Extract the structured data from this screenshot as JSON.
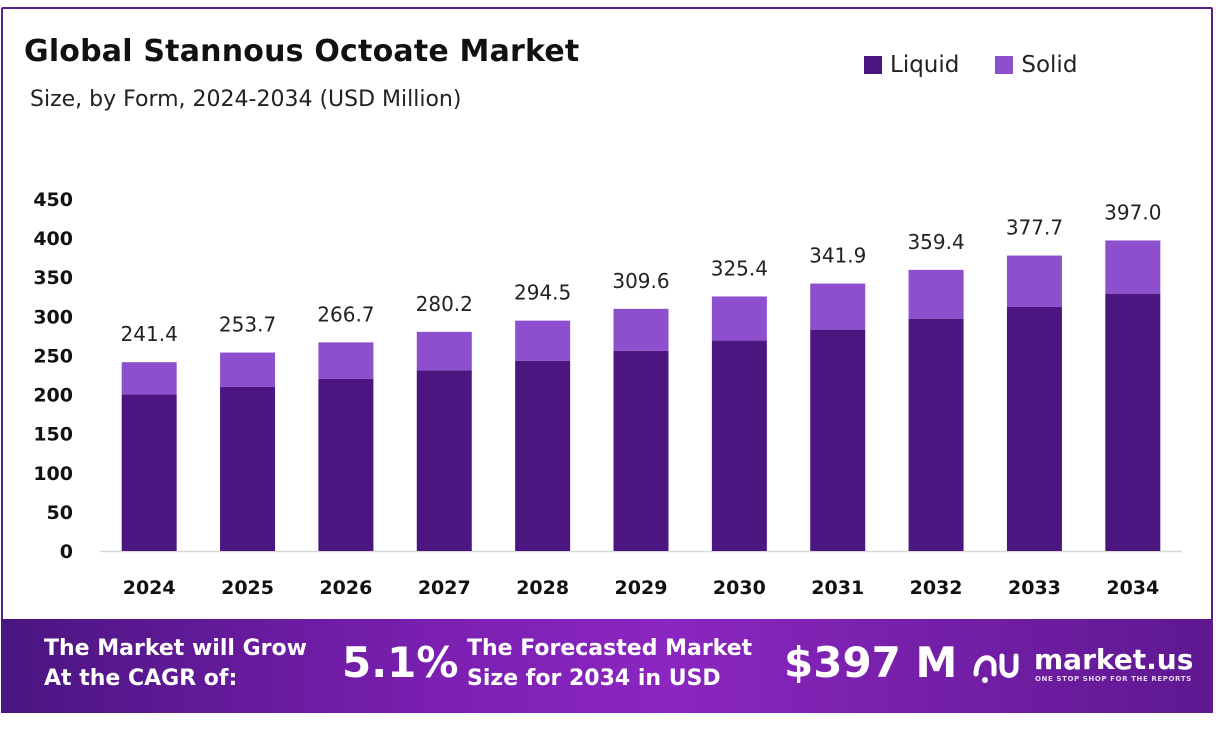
{
  "header": {
    "title": "Global Stannous Octoate Market",
    "subtitle": "Size, by Form, 2024-2034 (USD Million)"
  },
  "legend": [
    {
      "label": "Liquid",
      "color": "#4b1680"
    },
    {
      "label": "Solid",
      "color": "#8e4fce"
    }
  ],
  "chart_data": {
    "type": "bar",
    "stacked": true,
    "categories": [
      "2024",
      "2025",
      "2026",
      "2027",
      "2028",
      "2029",
      "2030",
      "2031",
      "2032",
      "2033",
      "2034"
    ],
    "series": [
      {
        "name": "Liquid",
        "color": "#4b1680",
        "values": [
          200,
          210,
          220,
          231,
          243,
          256,
          269,
          283,
          297,
          312,
          329
        ]
      },
      {
        "name": "Solid",
        "color": "#8e4fce",
        "values": [
          41.4,
          43.7,
          46.7,
          49.2,
          51.5,
          53.6,
          56.4,
          58.9,
          62.4,
          65.7,
          68.0
        ]
      }
    ],
    "totals": [
      "241.4",
      "253.7",
      "266.7",
      "280.2",
      "294.5",
      "309.6",
      "325.4",
      "341.9",
      "359.4",
      "377.7",
      "397.0"
    ],
    "yticks": [
      0,
      50,
      100,
      150,
      200,
      250,
      300,
      350,
      400,
      450
    ],
    "ylim": [
      0,
      450
    ],
    "grid": false,
    "legend_position": "top-right"
  },
  "banner": {
    "cagr_label_line1": "The Market will Grow",
    "cagr_label_line2": "At the CAGR of:",
    "cagr_value": "5.1%",
    "forecast_label_line1": "The Forecasted Market",
    "forecast_label_line2": "Size for 2034 in USD",
    "forecast_value": "$397 M",
    "brand_name": "market.us",
    "brand_tagline": "ONE STOP SHOP FOR THE REPORTS",
    "brand_icon": "market-us-logo-icon"
  }
}
